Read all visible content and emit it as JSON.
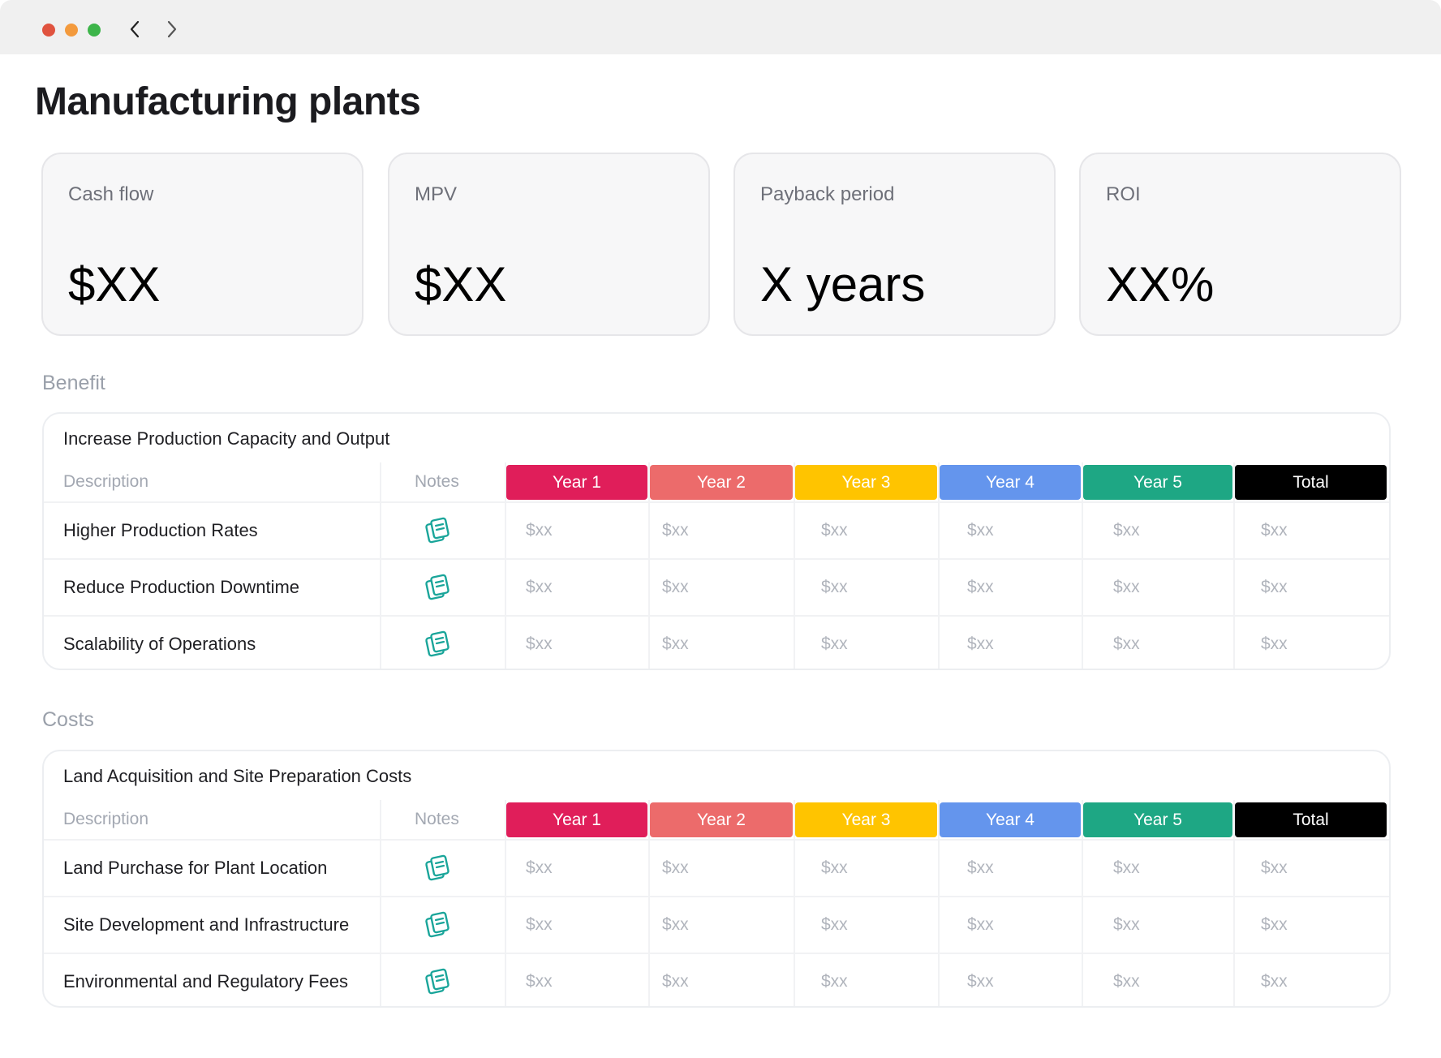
{
  "window": {
    "nav": {
      "back": "‹",
      "forward": "›"
    }
  },
  "page": {
    "title": "Manufacturing plants"
  },
  "kpis": [
    {
      "label": "Cash flow",
      "value": "$XX"
    },
    {
      "label": "MPV",
      "value": "$XX"
    },
    {
      "label": "Payback period",
      "value": "X years"
    },
    {
      "label": "ROI",
      "value": "XX%"
    }
  ],
  "benefit": {
    "section_label": "Benefit",
    "table_title": "Increase Production Capacity and Output",
    "columns": {
      "description": "Description",
      "notes": "Notes"
    },
    "year_headers": [
      {
        "label": "Year 1",
        "color": "#e01e5a",
        "text_color": "#ffffff"
      },
      {
        "label": "Year 2",
        "color": "#ec6b6b",
        "text_color": "#ffffff"
      },
      {
        "label": "Year 3",
        "color": "#ffc400",
        "text_color": "#ffffff"
      },
      {
        "label": "Year 4",
        "color": "#6495ed",
        "text_color": "#ffffff"
      },
      {
        "label": "Year 5",
        "color": "#1ea784",
        "text_color": "#ffffff"
      },
      {
        "label": "Total",
        "color": "#000000",
        "text_color": "#ffffff"
      }
    ],
    "rows": [
      {
        "description": "Higher Production Rates",
        "values": [
          "$xx",
          "$xx",
          "$xx",
          "$xx",
          "$xx",
          "$xx"
        ]
      },
      {
        "description": "Reduce Production Downtime",
        "values": [
          "$xx",
          "$xx",
          "$xx",
          "$xx",
          "$xx",
          "$xx"
        ]
      },
      {
        "description": "Scalability of Operations",
        "values": [
          "$xx",
          "$xx",
          "$xx",
          "$xx",
          "$xx",
          "$xx"
        ]
      }
    ]
  },
  "costs": {
    "section_label": "Costs",
    "table_title": "Land Acquisition and Site Preparation Costs",
    "columns": {
      "description": "Description",
      "notes": "Notes"
    },
    "year_headers": [
      {
        "label": "Year 1",
        "color": "#e01e5a",
        "text_color": "#ffffff"
      },
      {
        "label": "Year 2",
        "color": "#ec6b6b",
        "text_color": "#ffffff"
      },
      {
        "label": "Year 3",
        "color": "#ffc400",
        "text_color": "#ffffff"
      },
      {
        "label": "Year 4",
        "color": "#6495ed",
        "text_color": "#ffffff"
      },
      {
        "label": "Year 5",
        "color": "#1ea784",
        "text_color": "#ffffff"
      },
      {
        "label": "Total",
        "color": "#000000",
        "text_color": "#ffffff"
      }
    ],
    "rows": [
      {
        "description": "Land Purchase for Plant Location",
        "values": [
          "$xx",
          "$xx",
          "$xx",
          "$xx",
          "$xx",
          "$xx"
        ]
      },
      {
        "description": "Site Development and Infrastructure",
        "values": [
          "$xx",
          "$xx",
          "$xx",
          "$xx",
          "$xx",
          "$xx"
        ]
      },
      {
        "description": "Environmental and Regulatory Fees",
        "values": [
          "$xx",
          "$xx",
          "$xx",
          "$xx",
          "$xx",
          "$xx"
        ]
      }
    ]
  },
  "icons": {
    "notes": "notes-icon",
    "note_color": "#1aa59a"
  }
}
